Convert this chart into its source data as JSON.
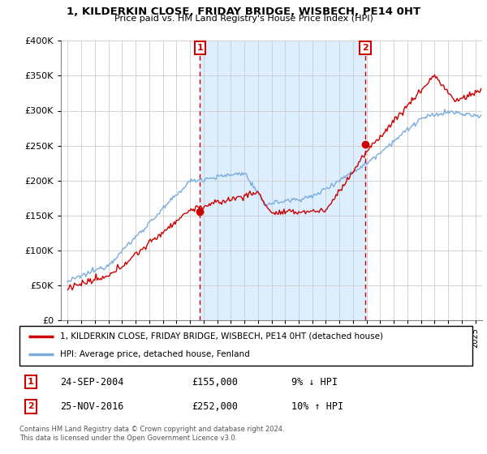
{
  "title": "1, KILDERKIN CLOSE, FRIDAY BRIDGE, WISBECH, PE14 0HT",
  "subtitle": "Price paid vs. HM Land Registry's House Price Index (HPI)",
  "legend_label_red": "1, KILDERKIN CLOSE, FRIDAY BRIDGE, WISBECH, PE14 0HT (detached house)",
  "legend_label_blue": "HPI: Average price, detached house, Fenland",
  "sale1_label": "1",
  "sale1_date": "24-SEP-2004",
  "sale1_price": "£155,000",
  "sale1_hpi": "9% ↓ HPI",
  "sale2_label": "2",
  "sale2_date": "25-NOV-2016",
  "sale2_price": "£252,000",
  "sale2_hpi": "10% ↑ HPI",
  "footnote": "Contains HM Land Registry data © Crown copyright and database right 2024.\nThis data is licensed under the Open Government Licence v3.0.",
  "sale1_year": 2004.73,
  "sale2_year": 2016.9,
  "sale1_price_val": 155000,
  "sale2_price_val": 252000,
  "ylim_min": 0,
  "ylim_max": 400000,
  "xlim_min": 1994.5,
  "xlim_max": 2025.5,
  "color_red": "#cc0000",
  "color_blue": "#7aaddb",
  "color_vline": "#cc0000",
  "color_shade": "#ddeeff",
  "bg_color": "#ffffff",
  "grid_color": "#cccccc"
}
